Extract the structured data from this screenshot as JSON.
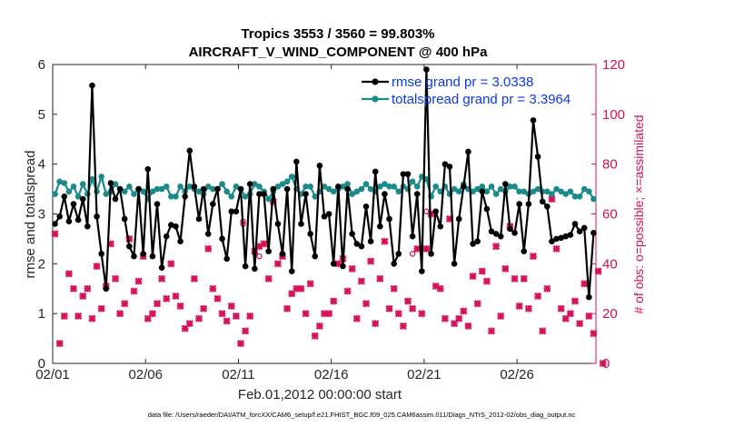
{
  "chart_data": {
    "type": "line",
    "title": "Tropics 3553 / 3560 = 99.803%",
    "subtitle": "AIRCRAFT_V_WIND_COMPONENT @ 400 hPa",
    "xlabel": "Feb.01,2012 00:00:00 start",
    "ylabel": "rmse and totalspread",
    "ylabel_right": "# of obs: o=possible; ×=assimilated",
    "footnote": "data file: /Users/raeder/DAI/ATM_forcXX/CAM6_setup/f.e21.FHIST_BGC.f09_025.CAM6assim.011/Diags_NTrS_2012-02/obs_diag_output.nc",
    "x_ticks": [
      "02/01",
      "02/06",
      "02/11",
      "02/16",
      "02/21",
      "02/26"
    ],
    "x_tick_days": [
      0,
      5,
      10,
      15,
      20,
      25
    ],
    "xlim": [
      0,
      29.25
    ],
    "ylim": [
      0,
      6
    ],
    "y_ticks": [
      "0",
      "1",
      "2",
      "3",
      "4",
      "5",
      "6"
    ],
    "y_right_lim": [
      0,
      120
    ],
    "y_right_ticks": [
      "0",
      "20",
      "40",
      "60",
      "80",
      "100",
      "120"
    ],
    "x_step_days": 0.25,
    "x_start_day": 0.125,
    "series": [
      {
        "name": "rmse",
        "legend": "rmse grand pr = 3.0338",
        "color": "#000000",
        "marker": "circle",
        "values": [
          2.8,
          2.95,
          3.35,
          2.85,
          3.2,
          2.88,
          3.3,
          2.75,
          5.58,
          2.95,
          2.2,
          1.5,
          3.62,
          3.3,
          3.5,
          2.9,
          2.35,
          2.15,
          3.5,
          2.2,
          3.9,
          2.15,
          3.2,
          1.92,
          2.55,
          2.78,
          2.75,
          2.45,
          3.35,
          4.27,
          3.55,
          2.9,
          3.5,
          2.6,
          3.2,
          3.5,
          2.5,
          2.1,
          3.05,
          3.05,
          3.5,
          1.95,
          3.6,
          1.9,
          3.4,
          3.4,
          2.25,
          3.5,
          2.8,
          2.2,
          3.5,
          1.85,
          4.05,
          2.8,
          3.4,
          2.6,
          2.15,
          3.97,
          2.95,
          3.0,
          2.0,
          3.55,
          1.95,
          3.5,
          2.6,
          2.4,
          2.35,
          3.15,
          2.45,
          3.85,
          2.75,
          3.4,
          2.9,
          2.0,
          2.2,
          3.8,
          3.8,
          2.55,
          3.4,
          1.85,
          5.9,
          2.2,
          3.05,
          2.75,
          4.0,
          3.95,
          2.0,
          2.9,
          3.55,
          4.25,
          2.4,
          2.45,
          3.45,
          3.1,
          2.65,
          2.6,
          2.55,
          3.6,
          2.7,
          2.62,
          3.2,
          2.25,
          3.2,
          4.88,
          4.15,
          3.25,
          3.15,
          2.45,
          2.5,
          2.52,
          2.55,
          2.58,
          2.8,
          2.65,
          2.72,
          1.33,
          2.62
        ]
      },
      {
        "name": "totalspread",
        "legend": "totalspread grand pr = 3.3964",
        "color": "#1a8a8a",
        "marker": "circle",
        "values": [
          3.4,
          3.65,
          3.62,
          3.45,
          3.55,
          3.35,
          3.6,
          3.4,
          3.7,
          3.45,
          3.75,
          3.4,
          3.45,
          3.6,
          3.5,
          3.45,
          3.55,
          3.4,
          3.5,
          3.45,
          3.3,
          3.45,
          3.5,
          3.5,
          3.55,
          3.35,
          3.35,
          3.55,
          3.45,
          3.55,
          3.5,
          3.45,
          3.4,
          3.55,
          3.5,
          3.5,
          3.6,
          3.45,
          3.35,
          3.55,
          3.5,
          3.35,
          3.4,
          3.6,
          3.55,
          3.45,
          3.3,
          3.45,
          3.55,
          3.6,
          3.65,
          3.75,
          3.5,
          3.4,
          3.55,
          3.55,
          3.35,
          3.45,
          3.55,
          3.5,
          3.45,
          3.5,
          3.55,
          3.6,
          3.4,
          3.45,
          3.5,
          3.6,
          3.5,
          3.45,
          3.55,
          3.6,
          3.55,
          3.55,
          3.45,
          3.55,
          3.5,
          3.65,
          3.55,
          3.75,
          3.7,
          3.35,
          3.55,
          3.45,
          3.55,
          3.4,
          3.5,
          3.45,
          3.6,
          3.5,
          3.45,
          3.5,
          3.55,
          3.45,
          3.55,
          3.4,
          3.5,
          3.45,
          3.55,
          3.55,
          3.45,
          3.45,
          3.4,
          3.45,
          3.5,
          3.45,
          3.45,
          3.4,
          3.5,
          3.45,
          3.4,
          3.45,
          3.35,
          3.35,
          3.5,
          3.45,
          3.3
        ]
      },
      {
        "name": "obs_assimilated",
        "color": "#d6105a",
        "marker": "x",
        "axis": "right",
        "values": [
          52,
          8,
          19,
          36,
          30,
          19,
          27,
          30,
          18,
          39,
          22,
          31,
          48,
          34,
          20,
          24,
          50,
          29,
          33,
          43,
          18,
          20,
          24,
          34,
          26,
          40,
          27,
          23,
          14,
          16,
          34,
          18,
          22,
          46,
          30,
          26,
          20,
          17,
          23,
          19,
          8,
          13,
          19,
          45,
          47,
          48,
          34,
          65,
          40,
          43,
          22,
          28,
          30,
          30,
          20,
          32,
          11,
          15,
          20,
          20,
          25,
          40,
          42,
          29,
          38,
          18,
          33,
          24,
          41,
          16,
          34,
          49,
          22,
          30,
          20,
          15,
          25,
          22,
          46,
          20,
          46,
          60,
          31,
          30,
          18,
          58,
          16,
          18,
          21,
          15,
          35,
          24,
          37,
          33,
          13,
          47,
          19,
          38,
          55,
          34,
          23,
          34,
          22,
          43,
          27,
          13,
          30,
          66,
          46,
          22,
          18,
          20,
          25,
          16,
          32,
          19,
          12,
          37,
          0
        ]
      }
    ],
    "possible_extra": [
      {
        "day": 10.25,
        "value": 57
      },
      {
        "day": 10.25,
        "value": 56
      },
      {
        "day": 11.125,
        "value": 43
      },
      {
        "day": 19.375,
        "value": 44
      },
      {
        "day": 20.125,
        "value": 46
      },
      {
        "day": 20.125,
        "value": 61
      }
    ],
    "legend_position": "top-right",
    "grid": false
  }
}
